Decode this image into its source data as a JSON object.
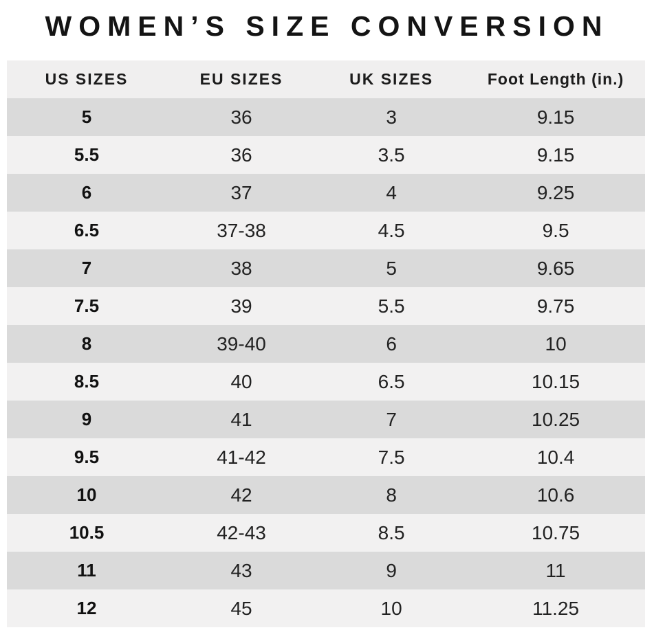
{
  "title": "WOMEN’S SIZE CONVERSION",
  "colors": {
    "header_bg": "#f0efef",
    "row_dark": "#dadada",
    "row_light": "#f2f1f1",
    "title_text": "#141414",
    "cell_text": "#222222"
  },
  "chart_data": {
    "type": "table",
    "title": "WOMEN’S SIZE CONVERSION",
    "columns": [
      "US SIZES",
      "EU SIZES",
      "UK SIZES",
      "Foot Length (in.)"
    ],
    "rows": [
      [
        "5",
        "36",
        "3",
        "9.15"
      ],
      [
        "5.5",
        "36",
        "3.5",
        "9.15"
      ],
      [
        "6",
        "37",
        "4",
        "9.25"
      ],
      [
        "6.5",
        "37-38",
        "4.5",
        "9.5"
      ],
      [
        "7",
        "38",
        "5",
        "9.65"
      ],
      [
        "7.5",
        "39",
        "5.5",
        "9.75"
      ],
      [
        "8",
        "39-40",
        "6",
        "10"
      ],
      [
        "8.5",
        "40",
        "6.5",
        "10.15"
      ],
      [
        "9",
        "41",
        "7",
        "10.25"
      ],
      [
        "9.5",
        "41-42",
        "7.5",
        "10.4"
      ],
      [
        "10",
        "42",
        "8",
        "10.6"
      ],
      [
        "10.5",
        "42-43",
        "8.5",
        "10.75"
      ],
      [
        "11",
        "43",
        "9",
        "11"
      ],
      [
        "12",
        "45",
        "10",
        "11.25"
      ]
    ]
  }
}
